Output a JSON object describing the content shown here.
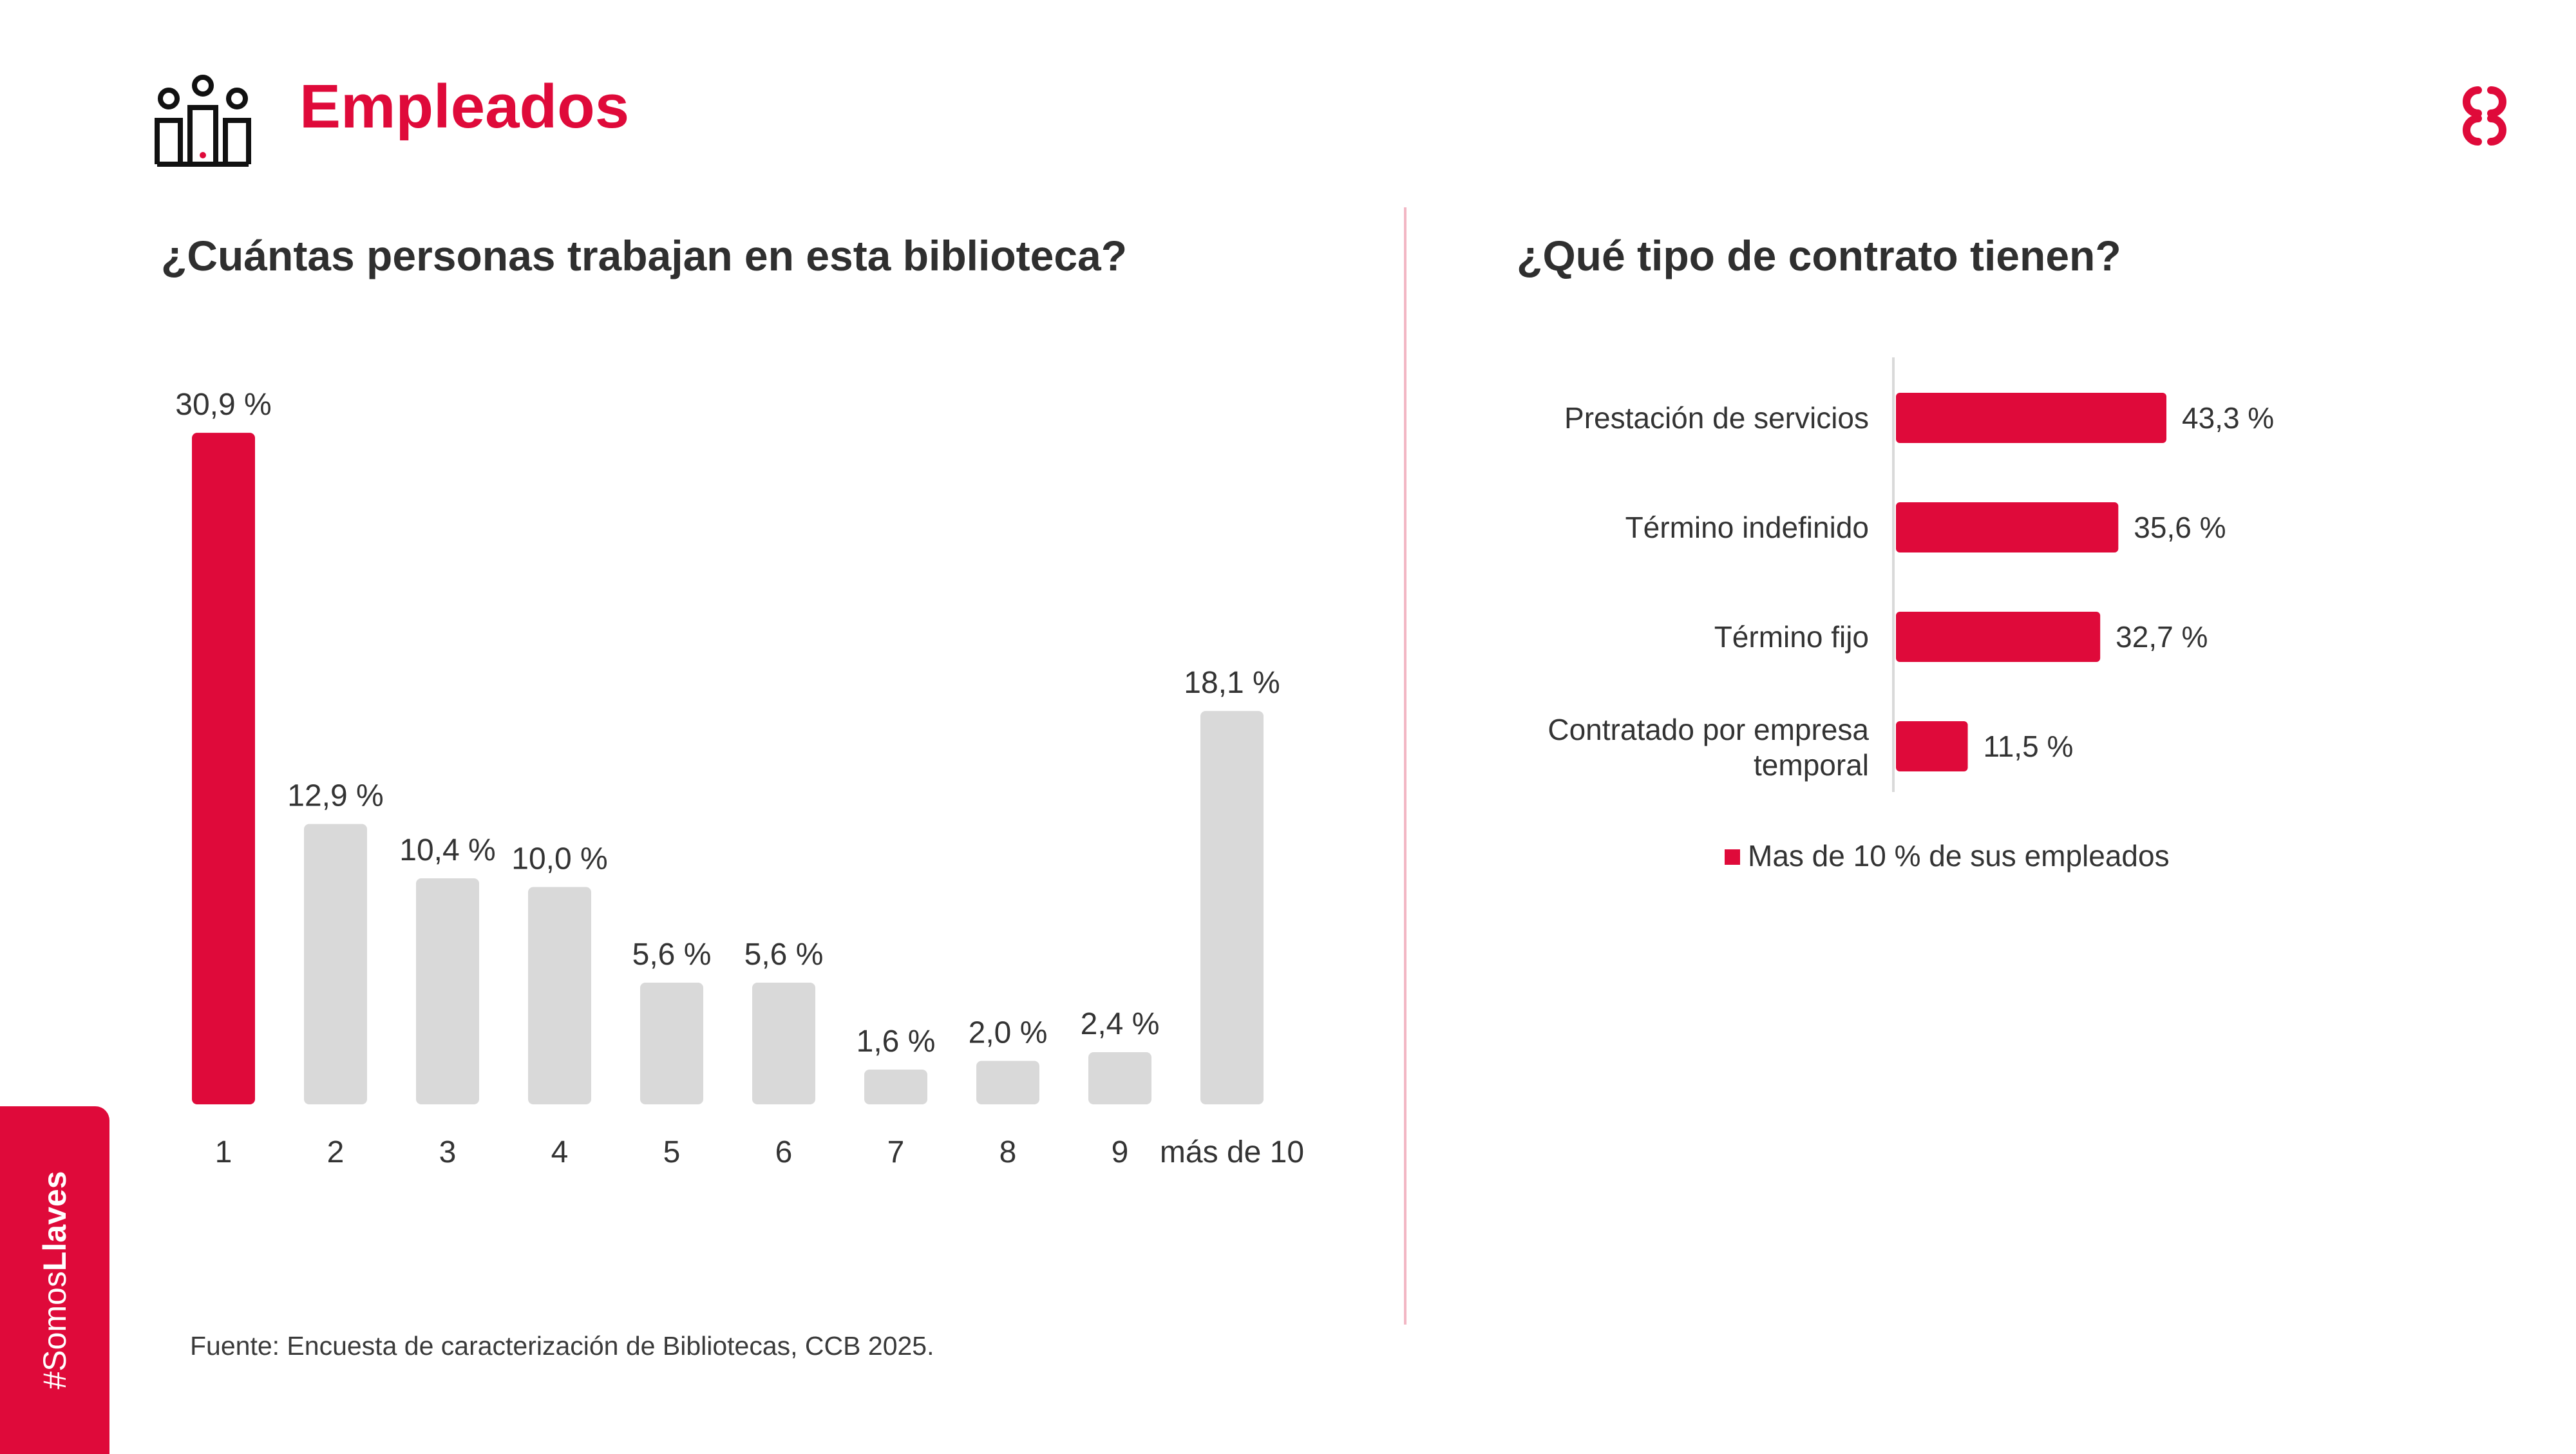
{
  "header": {
    "title": "Empleados",
    "icon": "people-group-icon",
    "logo": "brand-logo-icon"
  },
  "colors": {
    "accent": "#df0a3a",
    "neutral_bar": "#d9d9d9",
    "divider": "#f2b7c4"
  },
  "left_chart": {
    "question": "¿Cuántas personas trabajan en esta biblioteca?"
  },
  "right_chart": {
    "question": "¿Qué tipo de contrato tienen?"
  },
  "chart_data": [
    {
      "type": "bar",
      "title": "¿Cuántas personas trabajan en esta biblioteca?",
      "categories": [
        "1",
        "2",
        "3",
        "4",
        "5",
        "6",
        "7",
        "8",
        "9",
        "más de 10"
      ],
      "values": [
        30.9,
        12.9,
        10.4,
        10.0,
        5.6,
        5.6,
        1.6,
        2.0,
        2.4,
        18.1
      ],
      "value_labels": [
        "30,9 %",
        "12,9 %",
        "10,4 %",
        "10,0 %",
        "5,6 %",
        "5,6 %",
        "1,6 %",
        "2,0 %",
        "2,4 %",
        "18,1 %"
      ],
      "highlight_index": 0,
      "ylim": [
        0,
        32
      ],
      "grid": false
    },
    {
      "type": "bar",
      "orientation": "horizontal",
      "title": "¿Qué tipo de contrato tienen?",
      "categories": [
        "Prestación de servicios",
        "Término indefinido",
        "Término fijo",
        "Contratado por empresa temporal"
      ],
      "values": [
        43.3,
        35.6,
        32.7,
        11.5
      ],
      "value_labels": [
        "43,3 %",
        "35,6 %",
        "32,7 %",
        "11,5 %"
      ],
      "series": [
        {
          "name": "Mas de 10 % de sus empleados",
          "values": [
            43.3,
            35.6,
            32.7,
            11.5
          ]
        }
      ],
      "legend": "bottom",
      "xlim": [
        0,
        50
      ],
      "grid": false
    }
  ],
  "legend": {
    "label": "Mas de 10 % de sus empleados"
  },
  "footer": {
    "source": "Fuente: Encuesta de caracterización de Bibliotecas, CCB 2025."
  },
  "side_tab": {
    "prefix": "#Somos",
    "bold": "Llaves"
  }
}
